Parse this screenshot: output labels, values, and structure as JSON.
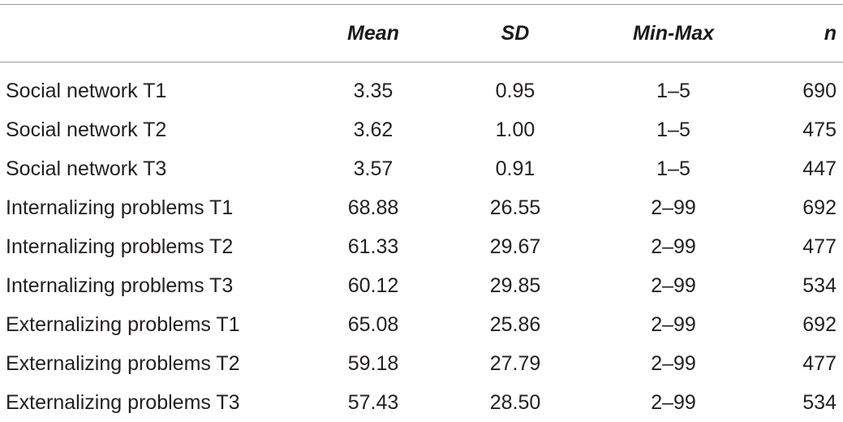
{
  "table": {
    "headers": {
      "label": "",
      "mean": "Mean",
      "sd": "SD",
      "minmax": "Min-Max",
      "n": "n"
    },
    "rows": [
      {
        "label": "Social network T1",
        "mean": "3.35",
        "sd": "0.95",
        "minmax": "1–5",
        "n": "690"
      },
      {
        "label": "Social network T2",
        "mean": "3.62",
        "sd": "1.00",
        "minmax": "1–5",
        "n": "475"
      },
      {
        "label": "Social network T3",
        "mean": "3.57",
        "sd": "0.91",
        "minmax": "1–5",
        "n": "447"
      },
      {
        "label": "Internalizing problems T1",
        "mean": "68.88",
        "sd": "26.55",
        "minmax": "2–99",
        "n": "692"
      },
      {
        "label": "Internalizing problems T2",
        "mean": "61.33",
        "sd": "29.67",
        "minmax": "2–99",
        "n": "477"
      },
      {
        "label": "Internalizing problems T3",
        "mean": "60.12",
        "sd": "29.85",
        "minmax": "2–99",
        "n": "534"
      },
      {
        "label": "Externalizing problems T1",
        "mean": "65.08",
        "sd": "25.86",
        "minmax": "2–99",
        "n": "692"
      },
      {
        "label": "Externalizing problems T2",
        "mean": "59.18",
        "sd": "27.79",
        "minmax": "2–99",
        "n": "477"
      },
      {
        "label": "Externalizing problems T3",
        "mean": "57.43",
        "sd": "28.50",
        "minmax": "2–99",
        "n": "534"
      }
    ]
  }
}
